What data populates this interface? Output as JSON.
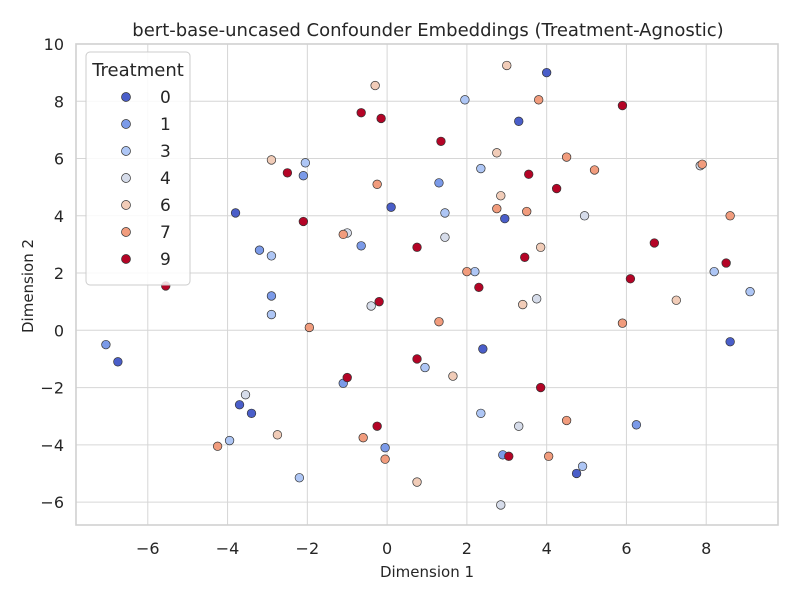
{
  "chart_data": {
    "type": "scatter",
    "title": "bert-base-uncased Confounder Embeddings (Treatment-Agnostic)",
    "xlabel": "Dimension 1",
    "ylabel": "Dimension 2",
    "xlim": [
      -7.8,
      9.8
    ],
    "ylim": [
      -6.8,
      10.0
    ],
    "xticks": [
      -6,
      -4,
      -2,
      0,
      2,
      4,
      6,
      8
    ],
    "yticks": [
      -6,
      -4,
      -2,
      0,
      2,
      4,
      6,
      8,
      10
    ],
    "xtick_labels": [
      "−6",
      "−4",
      "−2",
      "0",
      "2",
      "4",
      "6",
      "8"
    ],
    "ytick_labels": [
      "−6",
      "−4",
      "−2",
      "0",
      "2",
      "4",
      "6",
      "8",
      "10"
    ],
    "grid": true,
    "legend": {
      "title": "Treatment",
      "position": "top-left"
    },
    "series": [
      {
        "name": "0",
        "color": "#4a5ec9",
        "points": [
          [
            4.0,
            9.0
          ],
          [
            3.3,
            7.3
          ],
          [
            -3.8,
            4.1
          ],
          [
            0.1,
            4.3
          ],
          [
            2.95,
            3.9
          ],
          [
            2.4,
            -0.65
          ],
          [
            -3.4,
            -2.9
          ],
          [
            -3.7,
            -2.6
          ],
          [
            4.75,
            -5.0
          ],
          [
            8.6,
            -0.4
          ],
          [
            -6.75,
            -1.1
          ]
        ]
      },
      {
        "name": "1",
        "color": "#7b9ae8",
        "points": [
          [
            -3.2,
            2.8
          ],
          [
            -0.65,
            2.95
          ],
          [
            -2.9,
            1.2
          ],
          [
            1.3,
            5.15
          ],
          [
            -2.1,
            5.4
          ],
          [
            -1.1,
            -1.85
          ],
          [
            -0.05,
            -4.1
          ],
          [
            2.9,
            -4.35
          ],
          [
            6.25,
            -3.3
          ],
          [
            -7.05,
            -0.5
          ]
        ]
      },
      {
        "name": "3",
        "color": "#aec6f5",
        "points": [
          [
            -2.9,
            2.6
          ],
          [
            -2.9,
            0.55
          ],
          [
            -2.05,
            5.85
          ],
          [
            1.95,
            8.05
          ],
          [
            2.2,
            2.05
          ],
          [
            2.35,
            5.65
          ],
          [
            1.45,
            4.1
          ],
          [
            0.95,
            -1.3
          ],
          [
            2.35,
            -2.9
          ],
          [
            4.9,
            -4.75
          ],
          [
            8.2,
            2.05
          ],
          [
            9.1,
            1.35
          ],
          [
            -2.2,
            -5.15
          ],
          [
            -3.95,
            -3.85
          ]
        ]
      },
      {
        "name": "4",
        "color": "#d6dcea",
        "points": [
          [
            -1.0,
            3.4
          ],
          [
            -0.4,
            0.85
          ],
          [
            1.45,
            3.25
          ],
          [
            3.75,
            1.1
          ],
          [
            4.95,
            4.0
          ],
          [
            7.85,
            5.75
          ],
          [
            3.3,
            -3.35
          ],
          [
            2.85,
            -6.1
          ],
          [
            -3.55,
            -2.25
          ]
        ]
      },
      {
        "name": "6",
        "color": "#f1ccb8",
        "points": [
          [
            -0.3,
            8.55
          ],
          [
            -2.9,
            5.95
          ],
          [
            2.75,
            6.2
          ],
          [
            2.85,
            4.7
          ],
          [
            3.0,
            9.25
          ],
          [
            3.85,
            2.9
          ],
          [
            3.4,
            0.9
          ],
          [
            7.25,
            1.05
          ],
          [
            1.65,
            -1.6
          ],
          [
            0.75,
            -5.3
          ],
          [
            -2.75,
            -3.65
          ]
        ]
      },
      {
        "name": "7",
        "color": "#f19c7d",
        "points": [
          [
            -0.25,
            5.1
          ],
          [
            -1.1,
            3.35
          ],
          [
            -1.95,
            0.1
          ],
          [
            1.3,
            0.3
          ],
          [
            2.0,
            2.05
          ],
          [
            2.75,
            4.25
          ],
          [
            3.5,
            4.15
          ],
          [
            3.8,
            8.05
          ],
          [
            4.5,
            6.05
          ],
          [
            5.2,
            5.6
          ],
          [
            5.9,
            0.25
          ],
          [
            7.9,
            5.8
          ],
          [
            8.6,
            4.0
          ],
          [
            -0.6,
            -3.75
          ],
          [
            -0.05,
            -4.5
          ],
          [
            4.05,
            -4.4
          ],
          [
            4.5,
            -3.15
          ],
          [
            -4.25,
            -4.05
          ]
        ]
      },
      {
        "name": "9",
        "color": "#b40426",
        "points": [
          [
            -0.65,
            7.6
          ],
          [
            -0.15,
            7.4
          ],
          [
            1.35,
            6.6
          ],
          [
            -2.5,
            5.5
          ],
          [
            -2.1,
            3.8
          ],
          [
            -5.55,
            1.55
          ],
          [
            -0.2,
            1.0
          ],
          [
            0.75,
            2.9
          ],
          [
            2.3,
            1.5
          ],
          [
            3.45,
            2.55
          ],
          [
            3.55,
            5.45
          ],
          [
            4.25,
            4.95
          ],
          [
            5.9,
            7.85
          ],
          [
            6.7,
            3.05
          ],
          [
            6.1,
            1.8
          ],
          [
            8.5,
            2.35
          ],
          [
            0.75,
            -1.0
          ],
          [
            -1.0,
            -1.65
          ],
          [
            -0.25,
            -3.35
          ],
          [
            3.05,
            -4.4
          ],
          [
            3.85,
            -2.0
          ]
        ]
      }
    ]
  }
}
